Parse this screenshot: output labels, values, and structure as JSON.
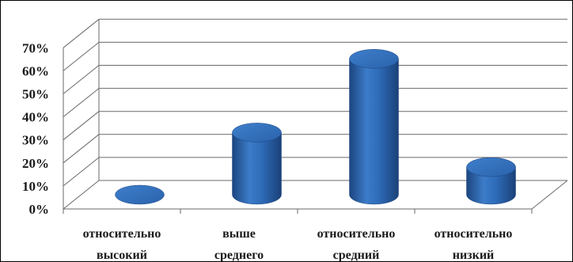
{
  "chart_data": {
    "type": "bar",
    "style": "3d-cylinder",
    "title": "",
    "xlabel": "",
    "ylabel": "",
    "ylim": [
      0,
      0.7
    ],
    "yticks": [
      "0%",
      "10%",
      "20%",
      "30%",
      "40%",
      "50%",
      "60%",
      "70%"
    ],
    "categories": [
      [
        "относительно",
        "высокий"
      ],
      [
        "выше",
        "среднего"
      ],
      [
        "относительно",
        "средний"
      ],
      [
        "относительно",
        "низкий"
      ]
    ],
    "values": [
      0.0,
      0.27,
      0.59,
      0.12
    ],
    "grid": true,
    "legend": "none",
    "colors": {
      "bar": "#2e6bb8",
      "bar_dark": "#1c4580",
      "bar_light": "#5b95d8",
      "grid": "#6a6a6a"
    }
  }
}
